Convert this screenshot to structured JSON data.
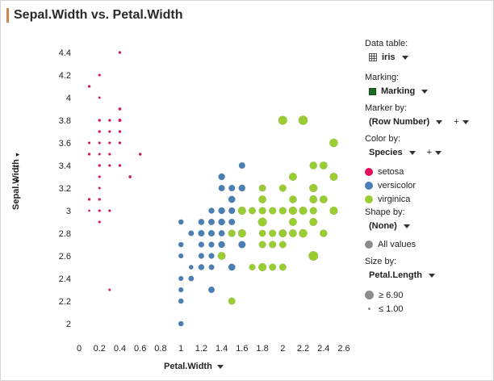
{
  "title": "Sepal.Width vs. Petal.Width",
  "colors": {
    "accent": "#c8884f",
    "setosa": "#e0105f",
    "versicolor": "#4a7fb5",
    "virginica": "#9acd32",
    "marking": "#1a6b22",
    "all_values": "#8c8c8c"
  },
  "chart_data": {
    "type": "scatter",
    "title": "Sepal.Width vs. Petal.Width",
    "xlabel": "Petal.Width",
    "ylabel": "Sepal.Width",
    "xlim": [
      0,
      2.6
    ],
    "ylim": [
      2,
      4.4
    ],
    "xticks": [
      0,
      0.2,
      0.4,
      0.6,
      0.8,
      1,
      1.2,
      1.4,
      1.6,
      1.8,
      2,
      2.2,
      2.4,
      2.6
    ],
    "yticks": [
      2,
      2.2,
      2.4,
      2.6,
      2.8,
      3,
      3.2,
      3.4,
      3.6,
      3.8,
      4,
      4.2,
      4.4
    ],
    "xtick_labels": [
      "0",
      "0.2",
      "0.4",
      "0.6",
      "0.8",
      "1",
      "1.2",
      "1.4",
      "1.6",
      "1.8",
      "2",
      "2.2",
      "2.4",
      "2.6"
    ],
    "ytick_labels": [
      "2",
      "2.2",
      "2.4",
      "2.6",
      "2.8",
      "3",
      "3.2",
      "3.4",
      "3.6",
      "3.8",
      "4",
      "4.2",
      "4.4"
    ],
    "size_by": "Petal.Length",
    "size_range": [
      1.0,
      6.9
    ],
    "series": [
      {
        "name": "setosa",
        "color": "#e0105f",
        "points": [
          [
            0.4,
            4.4
          ],
          [
            0.2,
            4.2
          ],
          [
            0.1,
            4.1
          ],
          [
            0.2,
            4.0
          ],
          [
            0.4,
            3.9
          ],
          [
            0.2,
            3.8
          ],
          [
            0.3,
            3.8
          ],
          [
            0.4,
            3.8
          ],
          [
            0.4,
            3.7
          ],
          [
            0.2,
            3.7
          ],
          [
            0.3,
            3.7
          ],
          [
            0.1,
            3.6
          ],
          [
            0.2,
            3.6
          ],
          [
            0.3,
            3.6
          ],
          [
            0.4,
            3.6
          ],
          [
            0.2,
            3.5
          ],
          [
            0.3,
            3.5
          ],
          [
            0.6,
            3.5
          ],
          [
            0.1,
            3.5
          ],
          [
            0.2,
            3.4
          ],
          [
            0.4,
            3.4
          ],
          [
            0.3,
            3.4
          ],
          [
            0.2,
            3.3
          ],
          [
            0.5,
            3.3
          ],
          [
            0.2,
            3.2
          ],
          [
            0.2,
            3.1
          ],
          [
            0.1,
            3.1
          ],
          [
            0.2,
            3.0
          ],
          [
            0.1,
            3.0
          ],
          [
            0.3,
            3.0
          ],
          [
            0.2,
            2.9
          ],
          [
            0.3,
            2.3
          ]
        ],
        "sizes": [
          1.5,
          1.4,
          1.5,
          1.2,
          1.7,
          1.6,
          1.5,
          1.9,
          1.5,
          1.5,
          1.4,
          1.4,
          1.4,
          1.4,
          1.5,
          1.3,
          1.4,
          1.6,
          1.5,
          1.5,
          1.5,
          1.4,
          1.4,
          1.7,
          1.3,
          1.5,
          1.5,
          1.4,
          1.1,
          1.4,
          1.4,
          1.3
        ]
      },
      {
        "name": "versicolor",
        "color": "#4a7fb5",
        "points": [
          [
            1.6,
            3.4
          ],
          [
            1.5,
            3.2
          ],
          [
            1.4,
            3.3
          ],
          [
            1.4,
            3.2
          ],
          [
            1.5,
            3.1
          ],
          [
            1.4,
            3.0
          ],
          [
            1.5,
            3.0
          ],
          [
            1.3,
            3.0
          ],
          [
            1.4,
            3.0
          ],
          [
            1.2,
            2.9
          ],
          [
            1.3,
            2.9
          ],
          [
            1.4,
            2.9
          ],
          [
            1.5,
            2.9
          ],
          [
            1.0,
            2.9
          ],
          [
            1.6,
            3.2
          ],
          [
            1.1,
            2.8
          ],
          [
            1.3,
            2.8
          ],
          [
            1.4,
            2.8
          ],
          [
            1.5,
            2.8
          ],
          [
            1.2,
            2.8
          ],
          [
            1.4,
            2.7
          ],
          [
            1.6,
            2.7
          ],
          [
            1.0,
            2.7
          ],
          [
            1.2,
            2.7
          ],
          [
            1.3,
            2.7
          ],
          [
            1.4,
            2.6
          ],
          [
            1.2,
            2.6
          ],
          [
            1.3,
            2.6
          ],
          [
            1.1,
            2.5
          ],
          [
            1.5,
            2.5
          ],
          [
            1.0,
            2.6
          ],
          [
            1.2,
            2.5
          ],
          [
            1.3,
            2.5
          ],
          [
            1.1,
            2.4
          ],
          [
            1.0,
            2.4
          ],
          [
            1.0,
            2.3
          ],
          [
            1.3,
            2.3
          ],
          [
            1.5,
            2.2
          ],
          [
            1.0,
            2.2
          ],
          [
            1.0,
            2.0
          ],
          [
            1.4,
            2.9
          ],
          [
            1.3,
            2.8
          ],
          [
            1.5,
            2.8
          ],
          [
            1.3,
            2.9
          ],
          [
            1.5,
            3.0
          ],
          [
            1.8,
            3.2
          ]
        ],
        "sizes": [
          4.5,
          4.5,
          4.7,
          4.4,
          4.9,
          4.4,
          4.5,
          4.1,
          4.6,
          4.2,
          4.3,
          4.5,
          4.5,
          3.5,
          4.7,
          3.8,
          4.0,
          4.3,
          4.7,
          4.5,
          4.7,
          5.1,
          3.5,
          3.9,
          3.9,
          4.4,
          3.9,
          4.0,
          3.0,
          4.9,
          3.3,
          4.1,
          3.8,
          3.7,
          3.3,
          3.3,
          4.4,
          4.5,
          3.5,
          3.5,
          4.6,
          4.5,
          4.6,
          4.0,
          4.2,
          4.8
        ]
      },
      {
        "name": "virginica",
        "color": "#9acd32",
        "points": [
          [
            2.0,
            3.8
          ],
          [
            2.2,
            3.8
          ],
          [
            2.5,
            3.6
          ],
          [
            2.3,
            3.4
          ],
          [
            2.4,
            3.4
          ],
          [
            2.1,
            3.3
          ],
          [
            2.5,
            3.3
          ],
          [
            2.3,
            3.2
          ],
          [
            1.8,
            3.2
          ],
          [
            2.0,
            3.2
          ],
          [
            2.4,
            3.1
          ],
          [
            2.1,
            3.1
          ],
          [
            2.3,
            3.1
          ],
          [
            1.8,
            3.1
          ],
          [
            1.8,
            3.0
          ],
          [
            2.1,
            3.0
          ],
          [
            2.2,
            3.0
          ],
          [
            2.3,
            3.0
          ],
          [
            1.6,
            3.0
          ],
          [
            2.0,
            3.0
          ],
          [
            1.7,
            3.0
          ],
          [
            2.5,
            3.0
          ],
          [
            1.9,
            3.0
          ],
          [
            1.8,
            2.9
          ],
          [
            2.1,
            2.9
          ],
          [
            1.8,
            2.8
          ],
          [
            2.0,
            2.8
          ],
          [
            2.1,
            2.8
          ],
          [
            2.2,
            2.8
          ],
          [
            2.4,
            2.8
          ],
          [
            1.9,
            2.8
          ],
          [
            1.5,
            2.8
          ],
          [
            1.9,
            2.7
          ],
          [
            1.8,
            2.7
          ],
          [
            2.0,
            2.7
          ],
          [
            1.7,
            2.5
          ],
          [
            1.9,
            2.5
          ],
          [
            2.0,
            2.5
          ],
          [
            2.3,
            2.6
          ],
          [
            1.4,
            2.6
          ],
          [
            1.8,
            2.5
          ],
          [
            1.5,
            2.2
          ],
          [
            2.4,
            2.8
          ],
          [
            2.3,
            2.9
          ],
          [
            2.0,
            2.8
          ],
          [
            1.6,
            2.8
          ]
        ],
        "sizes": [
          6.4,
          6.7,
          6.1,
          5.4,
          5.6,
          5.7,
          5.7,
          5.9,
          4.8,
          5.1,
          5.6,
          5.4,
          5.7,
          5.5,
          5.1,
          5.9,
          5.8,
          5.2,
          5.8,
          5.2,
          5.0,
          5.8,
          5.1,
          6.3,
          5.6,
          4.8,
          5.6,
          5.6,
          6.1,
          5.1,
          5.1,
          5.1,
          5.1,
          5.1,
          5.0,
          4.5,
          5.0,
          5.0,
          6.9,
          5.6,
          5.8,
          5.0,
          5.1,
          5.7,
          4.9,
          5.8
        ]
      }
    ]
  },
  "axes": {
    "x_label": "Petal.Width",
    "y_label": "Sepal.Width"
  },
  "y_controls": {
    "next": "▸",
    "plus": "+",
    "next2": "▸"
  },
  "legend": {
    "data_table": {
      "head": "Data table:",
      "value": "iris"
    },
    "marking": {
      "head": "Marking:",
      "value": "Marking"
    },
    "marker_by": {
      "head": "Marker by:",
      "value": "(Row Number)",
      "plus": "+"
    },
    "color_by": {
      "head": "Color by:",
      "value": "Species",
      "plus": "+"
    },
    "categories": [
      "setosa",
      "versicolor",
      "virginica"
    ],
    "shape_by": {
      "head": "Shape by:",
      "value": "(None)",
      "all_values": "All values"
    },
    "size_by": {
      "head": "Size by:",
      "value": "Petal.Length",
      "max_label": "≥ 6.90",
      "min_label": "≤ 1.00"
    }
  }
}
